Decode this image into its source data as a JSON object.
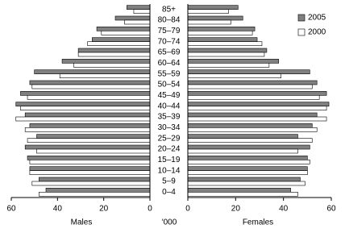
{
  "chart_data": {
    "type": "pyramid",
    "categories": [
      "85+",
      "80–84",
      "75–79",
      "70–74",
      "65–69",
      "60–64",
      "55–59",
      "50–54",
      "45–49",
      "40–44",
      "35–39",
      "30–34",
      "25–29",
      "20–24",
      "15–19",
      "10–14",
      "5–9",
      "0–4"
    ],
    "left_label": "Males",
    "right_label": "Females",
    "unit_label": "'000",
    "series": [
      {
        "name": "2005",
        "color": "#808080",
        "males": [
          10,
          15,
          23,
          25,
          31,
          38,
          50,
          52,
          56,
          58,
          54,
          52,
          49,
          54,
          53,
          52,
          48,
          45
        ],
        "females": [
          21,
          23,
          28,
          29,
          33,
          38,
          51,
          54,
          58,
          59,
          54,
          52,
          46,
          51,
          50,
          50,
          47,
          43
        ]
      },
      {
        "name": "2000",
        "color": "#ffffff",
        "males": [
          7,
          11,
          21,
          27,
          31,
          33,
          39,
          51,
          53,
          56,
          58,
          54,
          53,
          49,
          52,
          52,
          51,
          48
        ],
        "females": [
          17,
          18,
          27,
          31,
          32,
          34,
          39,
          52,
          55,
          58,
          58,
          54,
          52,
          46,
          51,
          50,
          49,
          46
        ]
      }
    ],
    "xlim": [
      0,
      60
    ],
    "xticks": [
      0,
      20,
      40,
      60
    ],
    "legend": "upper right"
  }
}
